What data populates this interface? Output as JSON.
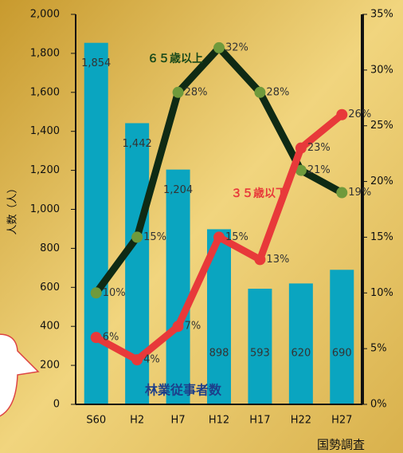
{
  "chart_data": {
    "type": "bar-line",
    "y_label": "人数（人）",
    "source": "国勢調査",
    "categories": [
      "S60",
      "H2",
      "H7",
      "H12",
      "H17",
      "H22",
      "H27"
    ],
    "bar": {
      "name": "林業従事者数",
      "color": "#0aa5c0",
      "values": [
        1854,
        1442,
        1204,
        898,
        593,
        620,
        690
      ],
      "value_labels": [
        "1,854",
        "1,442",
        "1,204",
        "898",
        "593",
        "620",
        "690"
      ]
    },
    "series": [
      {
        "name": "６５歳以上",
        "color": "#0f2a14",
        "marker_color": "#6f9a3c",
        "axis": "y2",
        "values": [
          10,
          15,
          28,
          32,
          28,
          21,
          19
        ],
        "value_labels": [
          "10%",
          "15%",
          "28%",
          "32%",
          "28%",
          "21%",
          "19%"
        ]
      },
      {
        "name": "３５歳以下",
        "color": "#e8393a",
        "marker_color": "#e8393a",
        "axis": "y2",
        "values": [
          6,
          4,
          7,
          15,
          13,
          23,
          26
        ],
        "value_labels": [
          "6%",
          "4%",
          "7%",
          "15%",
          "13%",
          "23%",
          "26%"
        ]
      }
    ],
    "ylim": [
      0,
      2000
    ],
    "yticks": [
      0,
      200,
      400,
      600,
      800,
      {
        "value": 1000,
        "label": "1,000"
      },
      {
        "value": 1200,
        "label": "1,200"
      },
      {
        "value": 1400,
        "label": "1,400"
      },
      {
        "value": 1600,
        "label": "1,600"
      },
      {
        "value": 1800,
        "label": "1,800"
      },
      {
        "value": 2000,
        "label": "2,000"
      }
    ],
    "y2lim": [
      0,
      35
    ],
    "y2ticks": [
      {
        "value": 0,
        "label": "0%"
      },
      {
        "value": 5,
        "label": "5%"
      },
      {
        "value": 10,
        "label": "10%"
      },
      {
        "value": 15,
        "label": "15%"
      },
      {
        "value": 20,
        "label": "20%"
      },
      {
        "value": 25,
        "label": "25%"
      },
      {
        "value": 30,
        "label": "30%"
      },
      {
        "value": 35,
        "label": "35%"
      }
    ]
  }
}
